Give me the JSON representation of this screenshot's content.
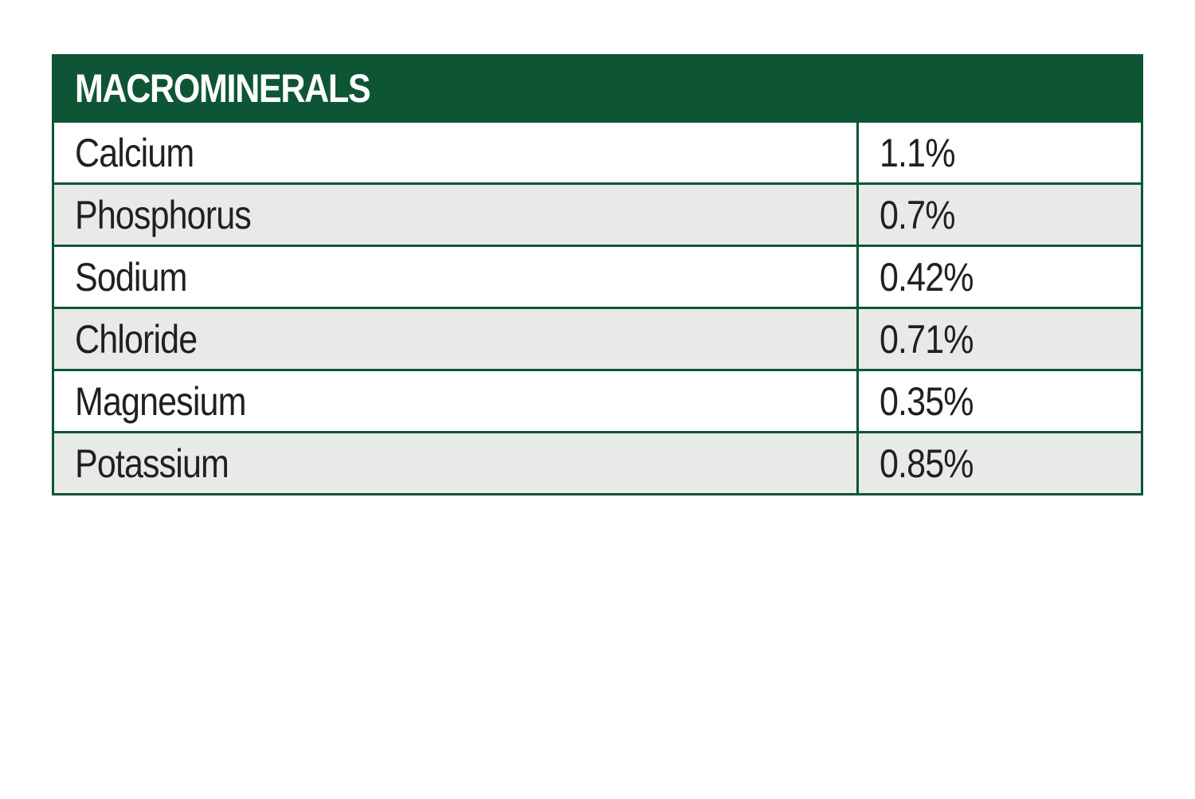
{
  "table": {
    "title": "MACROMINERALS",
    "header_color": "#0d5535",
    "stripe_color": "#e8eae7",
    "rows": [
      {
        "name": "Calcium",
        "value": "1.1%"
      },
      {
        "name": "Phosphorus",
        "value": "0.7%"
      },
      {
        "name": "Sodium",
        "value": "0.42%"
      },
      {
        "name": "Chloride",
        "value": "0.71%"
      },
      {
        "name": "Magnesium",
        "value": "0.35%"
      },
      {
        "name": "Potassium",
        "value": "0.85%"
      }
    ]
  }
}
